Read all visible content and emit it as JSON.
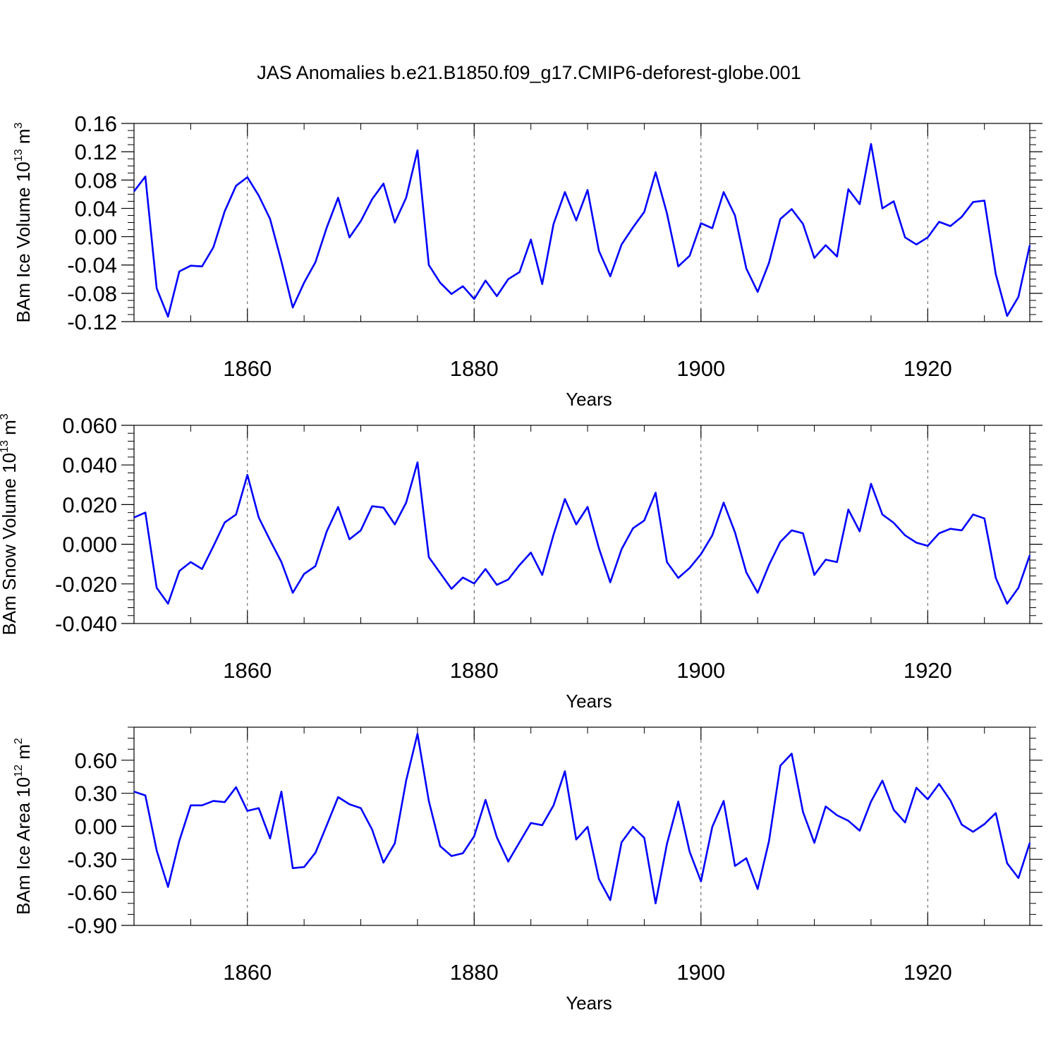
{
  "figure": {
    "title": "JAS Anomalies b.e21.B1850.f09_g17.CMIP6-deforest-globe.001"
  },
  "chart_data": [
    {
      "type": "line",
      "id": "ice-volume",
      "ylabel_text": "BAm Ice Volume 10",
      "ylabel_exponent": "13",
      "ylabel_unit": " m",
      "ylabel_unit_exponent": "3",
      "xlabel": "Years",
      "xlim": [
        1850,
        1929
      ],
      "ylim": [
        -0.12,
        0.16
      ],
      "x_ticks": [
        1860,
        1880,
        1900,
        1920
      ],
      "x_tick_labels": [
        "1860",
        "1880",
        "1900",
        "1920"
      ],
      "y_ticks": [
        -0.12,
        -0.08,
        -0.04,
        0.0,
        0.04,
        0.08,
        0.12,
        0.16
      ],
      "y_tick_labels": [
        "-0.12",
        "-0.08",
        "-0.04",
        "0.00",
        "0.04",
        "0.08",
        "0.12",
        "0.16"
      ],
      "y_minor_step": 0.01,
      "x_minor_step": 5,
      "grid_x": true,
      "x_start": 1850,
      "series": [
        {
          "name": "BAm Ice Volume",
          "color": "#0000ff",
          "values": [
            0.064,
            0.085,
            -0.073,
            -0.113,
            -0.049,
            -0.041,
            -0.042,
            -0.015,
            0.036,
            0.072,
            0.084,
            0.058,
            0.025,
            -0.035,
            -0.1,
            -0.065,
            -0.036,
            0.013,
            0.055,
            -0.001,
            0.022,
            0.053,
            0.075,
            0.02,
            0.055,
            0.122,
            -0.04,
            -0.065,
            -0.081,
            -0.07,
            -0.088,
            -0.062,
            -0.084,
            -0.06,
            -0.05,
            -0.004,
            -0.067,
            0.018,
            0.063,
            0.023,
            0.066,
            -0.02,
            -0.056,
            -0.011,
            0.013,
            0.035,
            0.091,
            0.033,
            -0.042,
            -0.027,
            0.019,
            0.012,
            0.063,
            0.03,
            -0.045,
            -0.078,
            -0.037,
            0.025,
            0.039,
            0.018,
            -0.03,
            -0.012,
            -0.028,
            0.067,
            0.046,
            0.131,
            0.04,
            0.05,
            -0.001,
            -0.011,
            -0.001,
            0.021,
            0.015,
            0.028,
            0.049,
            0.051,
            -0.053,
            -0.112,
            -0.085,
            -0.012
          ]
        }
      ]
    },
    {
      "type": "line",
      "id": "snow-volume",
      "ylabel_text": "BAm Snow Volume 10",
      "ylabel_exponent": "13",
      "ylabel_unit": " m",
      "ylabel_unit_exponent": "3",
      "xlabel": "Years",
      "xlim": [
        1850,
        1929
      ],
      "ylim": [
        -0.04,
        0.06
      ],
      "x_ticks": [
        1860,
        1880,
        1900,
        1920
      ],
      "x_tick_labels": [
        "1860",
        "1880",
        "1900",
        "1920"
      ],
      "y_ticks": [
        -0.04,
        -0.02,
        0.0,
        0.02,
        0.04,
        0.06
      ],
      "y_tick_labels": [
        "-0.040",
        "-0.020",
        "0.000",
        "0.020",
        "0.040",
        "0.060"
      ],
      "y_minor_step": 0.004,
      "x_minor_step": 5,
      "grid_x": true,
      "x_start": 1850,
      "series": [
        {
          "name": "BAm Snow Volume",
          "color": "#0000ff",
          "values": [
            0.0135,
            0.016,
            -0.022,
            -0.03,
            -0.0135,
            -0.009,
            -0.0125,
            -0.001,
            0.011,
            0.015,
            0.035,
            0.0135,
            0.002,
            -0.009,
            -0.0245,
            -0.015,
            -0.011,
            0.0065,
            0.0188,
            0.0025,
            0.007,
            0.0192,
            0.0185,
            0.01,
            0.021,
            0.0413,
            -0.0065,
            -0.0145,
            -0.0225,
            -0.0168,
            -0.0198,
            -0.0125,
            -0.0205,
            -0.0178,
            -0.0105,
            -0.0042,
            -0.0155,
            0.0048,
            0.0228,
            0.01,
            0.0188,
            -0.002,
            -0.0192,
            -0.0025,
            0.008,
            0.012,
            0.026,
            -0.009,
            -0.017,
            -0.012,
            -0.005,
            0.0045,
            0.021,
            0.006,
            -0.0142,
            -0.0245,
            -0.0105,
            0.0012,
            0.007,
            0.0055,
            -0.0155,
            -0.0078,
            -0.009,
            0.0175,
            0.0065,
            0.0305,
            0.015,
            0.0108,
            0.0045,
            0.0008,
            -0.0008,
            0.0055,
            0.0078,
            0.007,
            0.015,
            0.013,
            -0.017,
            -0.03,
            -0.022,
            -0.0055
          ]
        }
      ]
    },
    {
      "type": "line",
      "id": "ice-area",
      "ylabel_text": "BAm Ice Area 10",
      "ylabel_exponent": "12",
      "ylabel_unit": " m",
      "ylabel_unit_exponent": "2",
      "xlabel": "Years",
      "xlim": [
        1850,
        1929
      ],
      "ylim": [
        -0.9,
        0.9
      ],
      "x_ticks": [
        1860,
        1880,
        1900,
        1920
      ],
      "x_tick_labels": [
        "1860",
        "1880",
        "1900",
        "1920"
      ],
      "y_ticks": [
        -0.9,
        -0.6,
        -0.3,
        0.0,
        0.3,
        0.6
      ],
      "y_tick_labels": [
        "-0.90",
        "-0.60",
        "-0.30",
        "0.00",
        "0.30",
        "0.60"
      ],
      "y_minor_step": 0.1,
      "x_minor_step": 5,
      "grid_x": true,
      "x_start": 1850,
      "series": [
        {
          "name": "BAm Ice Area",
          "color": "#0000ff",
          "values": [
            0.315,
            0.28,
            -0.22,
            -0.55,
            -0.13,
            0.19,
            0.19,
            0.23,
            0.22,
            0.355,
            0.14,
            0.165,
            -0.11,
            0.315,
            -0.38,
            -0.37,
            -0.24,
            0.01,
            0.265,
            0.2,
            0.165,
            -0.03,
            -0.33,
            -0.155,
            0.415,
            0.84,
            0.23,
            -0.18,
            -0.27,
            -0.245,
            -0.09,
            0.24,
            -0.1,
            -0.32,
            -0.145,
            0.03,
            0.01,
            0.19,
            0.5,
            -0.12,
            -0.005,
            -0.48,
            -0.67,
            -0.145,
            -0.005,
            -0.105,
            -0.7,
            -0.16,
            0.225,
            -0.23,
            -0.5,
            -0.005,
            0.23,
            -0.36,
            -0.29,
            -0.57,
            -0.135,
            0.55,
            0.66,
            0.13,
            -0.15,
            0.18,
            0.1,
            0.05,
            -0.04,
            0.225,
            0.415,
            0.15,
            0.035,
            0.35,
            0.245,
            0.385,
            0.235,
            0.015,
            -0.05,
            0.02,
            0.12,
            -0.335,
            -0.47,
            -0.15
          ]
        }
      ]
    }
  ]
}
